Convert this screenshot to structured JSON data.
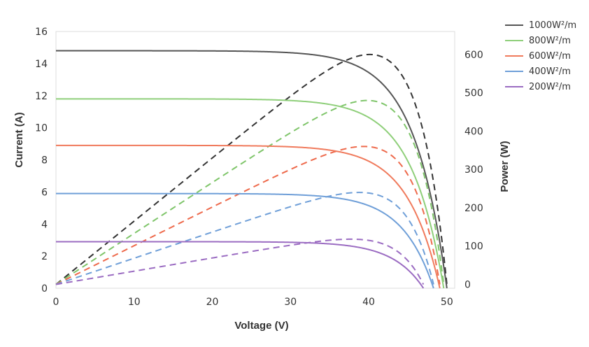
{
  "chart_data": {
    "type": "line",
    "title": "",
    "xlabel": "Voltage (V)",
    "ylabel": "Current (A)",
    "y2label": "Power (W)",
    "xlim": [
      0,
      51
    ],
    "ylim": [
      0,
      16
    ],
    "y2lim": [
      -10,
      660
    ],
    "xticks": [
      0,
      10,
      20,
      30,
      40,
      50
    ],
    "yticks": [
      0,
      2,
      4,
      6,
      8,
      10,
      12,
      14,
      16
    ],
    "y2ticks": [
      0,
      100,
      200,
      300,
      400,
      500,
      600
    ],
    "grid": false,
    "legend_position": "top-right",
    "series": [
      {
        "name": "1000W²/m",
        "color": "#555555",
        "power_color": "#333333",
        "isc": 14.8,
        "voc": 50.0,
        "vmp": 42.5,
        "pmax": 600
      },
      {
        "name": "800W²/m",
        "color": "#8fcf7a",
        "power_color": "#7fc56a",
        "isc": 11.8,
        "voc": 49.6,
        "vmp": 42.3,
        "pmax": 480
      },
      {
        "name": "600W²/m",
        "color": "#f07a5c",
        "power_color": "#ee6a4c",
        "isc": 8.9,
        "voc": 49.1,
        "vmp": 42.0,
        "pmax": 360
      },
      {
        "name": "400W²/m",
        "color": "#6f9fd8",
        "power_color": "#6f9fd8",
        "isc": 5.9,
        "voc": 48.3,
        "vmp": 41.5,
        "pmax": 240
      },
      {
        "name": "200W²/m",
        "color": "#9b6cc2",
        "power_color": "#9b6cc2",
        "isc": 2.9,
        "voc": 47.0,
        "vmp": 40.5,
        "pmax": 118
      }
    ]
  }
}
